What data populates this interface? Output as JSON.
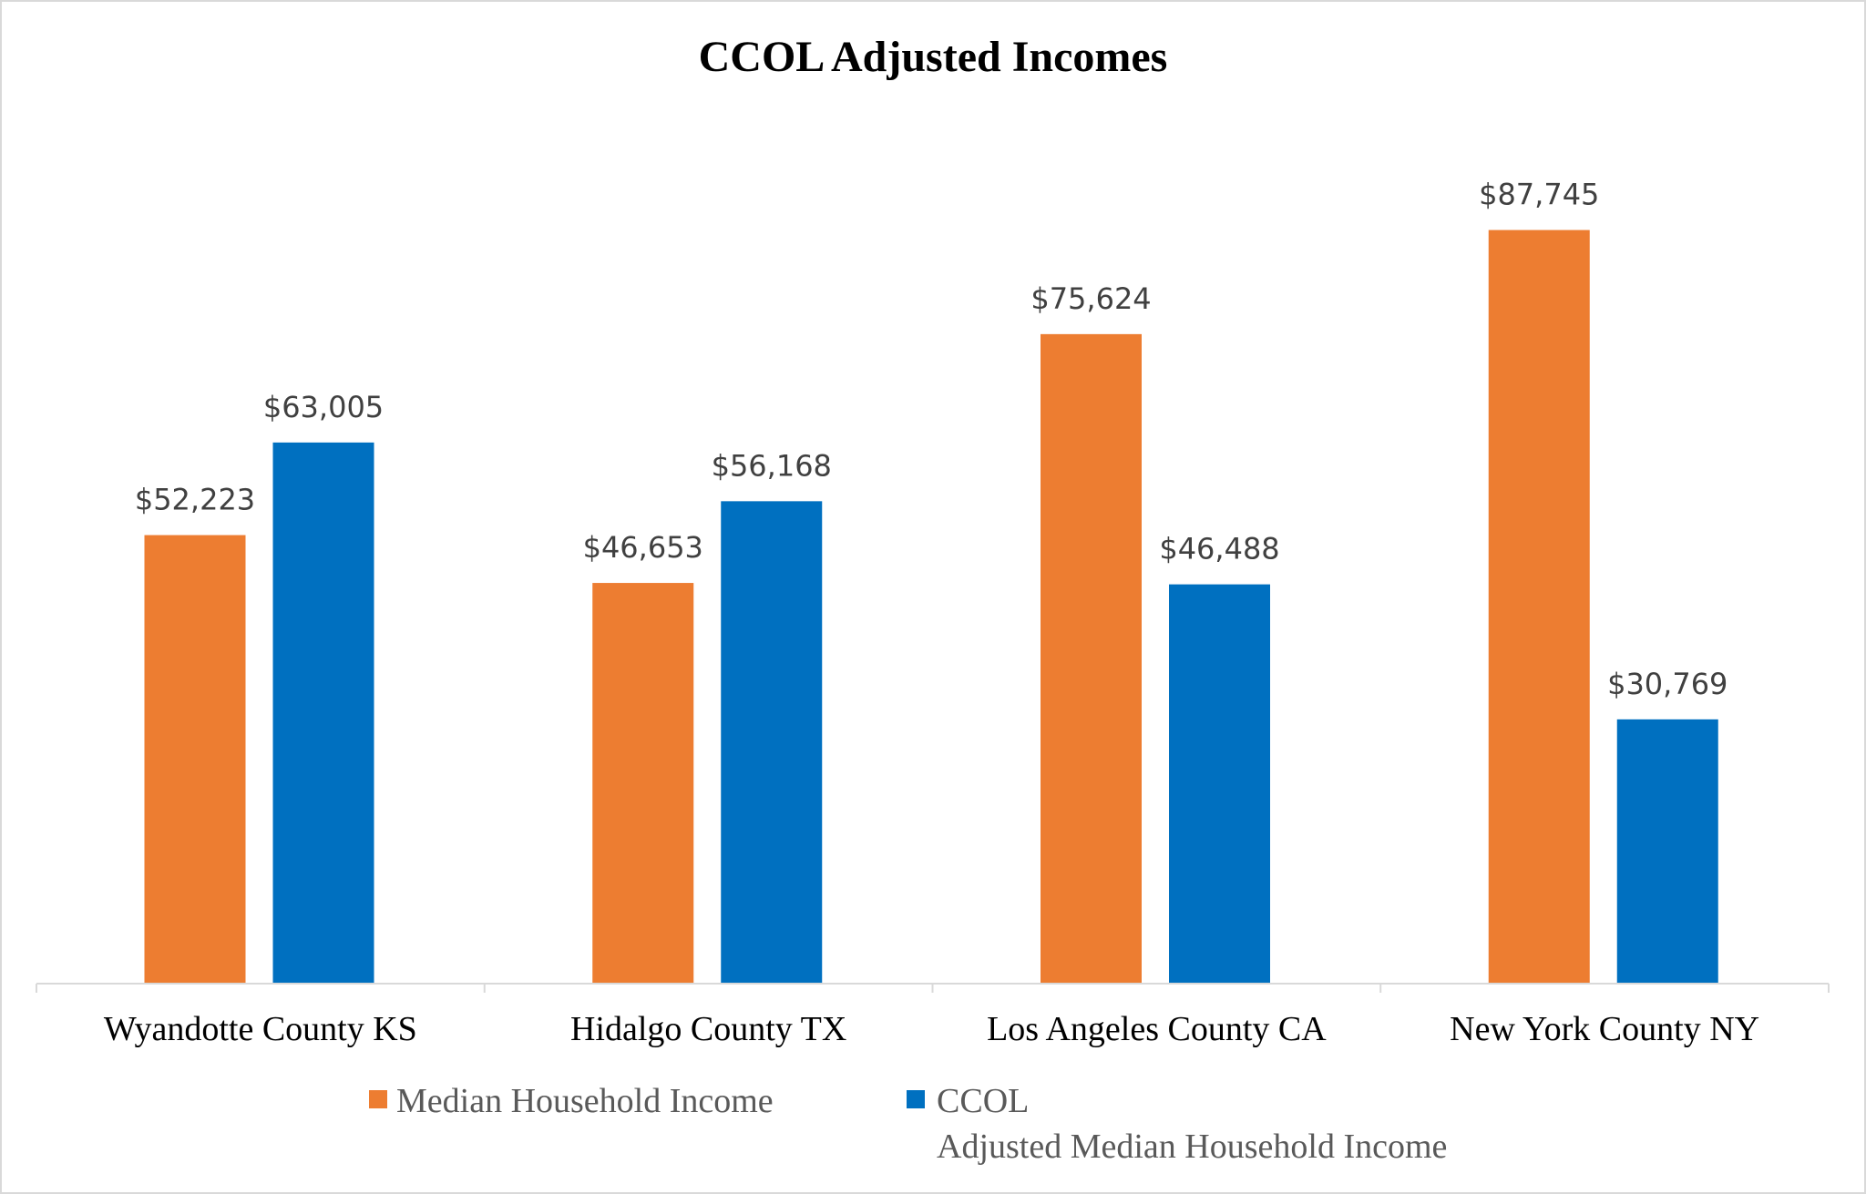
{
  "chart_data": {
    "type": "bar",
    "title": "CCOL Adjusted Incomes",
    "xlabel": "",
    "ylabel": "",
    "ylim": [
      0,
      100000
    ],
    "grid": false,
    "legend_placement": "bottom",
    "categories": [
      "Wyandotte County KS",
      "Hidalgo County TX",
      "Los Angeles County CA",
      "New York County NY"
    ],
    "series": [
      {
        "name": "Median Household Income",
        "color": "#ED7D31",
        "values": [
          52223,
          46653,
          75624,
          87745
        ],
        "labels": [
          "$52,223",
          "$46,653",
          "$75,624",
          "$87,745"
        ]
      },
      {
        "name": "CCOL Adjusted Median Household Income",
        "name_lines": [
          "CCOL",
          "Adjusted Median Household Income"
        ],
        "color": "#0070C0",
        "values": [
          63005,
          56168,
          46488,
          30769
        ],
        "labels": [
          "$63,005",
          "$56,168",
          "$46,488",
          "$30,769"
        ]
      }
    ]
  }
}
